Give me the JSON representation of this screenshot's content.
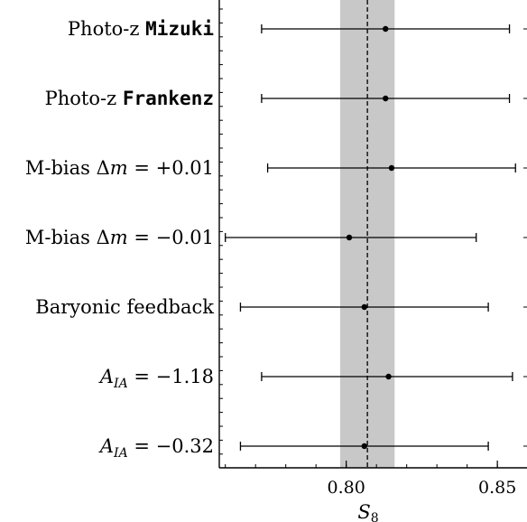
{
  "chart_data": {
    "type": "errorbar",
    "xlabel": "S",
    "xlabel_subscript": "8",
    "xlim": [
      0.758,
      0.861
    ],
    "xticks": [
      0.8,
      0.85
    ],
    "xtick_labels": [
      "0.80",
      "0.85"
    ],
    "reference": {
      "value": 0.807,
      "band": [
        0.798,
        0.816
      ],
      "line_style": "dashed",
      "band_color": "#c8c8c8"
    },
    "rows": [
      {
        "label_prefix": "Photo-z ",
        "label_code": "Mizuki",
        "label_math": "",
        "value": 0.813,
        "err_low": 0.772,
        "err_high": 0.854
      },
      {
        "label_prefix": "Photo-z ",
        "label_code": "Frankenz",
        "label_math": "",
        "value": 0.813,
        "err_low": 0.772,
        "err_high": 0.854
      },
      {
        "label_prefix": "M-bias ",
        "label_code": "",
        "label_math": "Δm = +0.01",
        "value": 0.815,
        "err_low": 0.774,
        "err_high": 0.856
      },
      {
        "label_prefix": "M-bias ",
        "label_code": "",
        "label_math": "Δm = −0.01",
        "value": 0.801,
        "err_low": 0.76,
        "err_high": 0.843
      },
      {
        "label_prefix": "Baryonic feedback",
        "label_code": "",
        "label_math": "",
        "value": 0.806,
        "err_low": 0.765,
        "err_high": 0.847
      },
      {
        "label_prefix": "",
        "label_code": "",
        "label_math": "A_IA = −1.18",
        "value": 0.814,
        "err_low": 0.772,
        "err_high": 0.855
      },
      {
        "label_prefix": "",
        "label_code": "",
        "label_math": "A_IA = −0.32",
        "value": 0.806,
        "err_low": 0.765,
        "err_high": 0.847
      }
    ]
  }
}
